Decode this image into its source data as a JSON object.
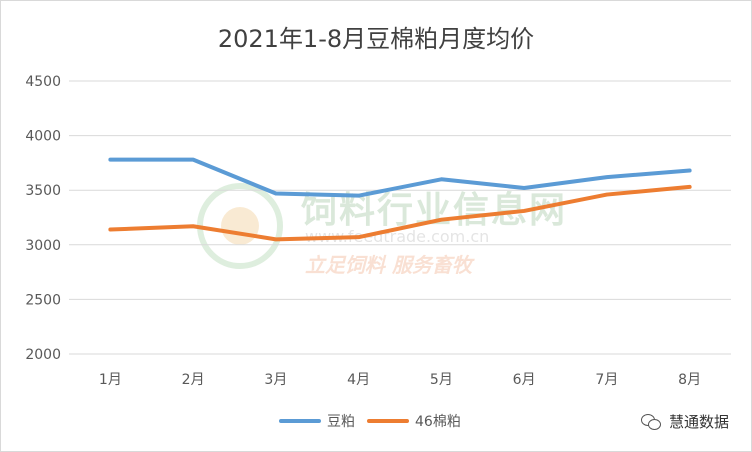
{
  "chart_data": {
    "type": "line",
    "title": "2021年1-8月豆棉粕月度均价",
    "categories": [
      "1月",
      "2月",
      "3月",
      "4月",
      "5月",
      "6月",
      "7月",
      "8月"
    ],
    "series": [
      {
        "name": "豆粕",
        "color": "#5b9bd5",
        "values": [
          3780,
          3780,
          3470,
          3450,
          3600,
          3520,
          3620,
          3680
        ]
      },
      {
        "name": "46棉粕",
        "color": "#ed7d31",
        "values": [
          3140,
          3170,
          3050,
          3070,
          3230,
          3310,
          3460,
          3530
        ]
      }
    ],
    "yticks": [
      2000,
      2500,
      3000,
      3500,
      4000,
      4500
    ],
    "ylim": [
      2000,
      4500
    ],
    "grid": true,
    "legend": "bottom"
  },
  "watermark": {
    "name": "饲料行业信息网",
    "url": "www.feedtrade.com.cn",
    "slogan": "立足饲料 服务畜牧"
  },
  "source": {
    "icon": "wechat-icon",
    "text": "慧通数据"
  }
}
